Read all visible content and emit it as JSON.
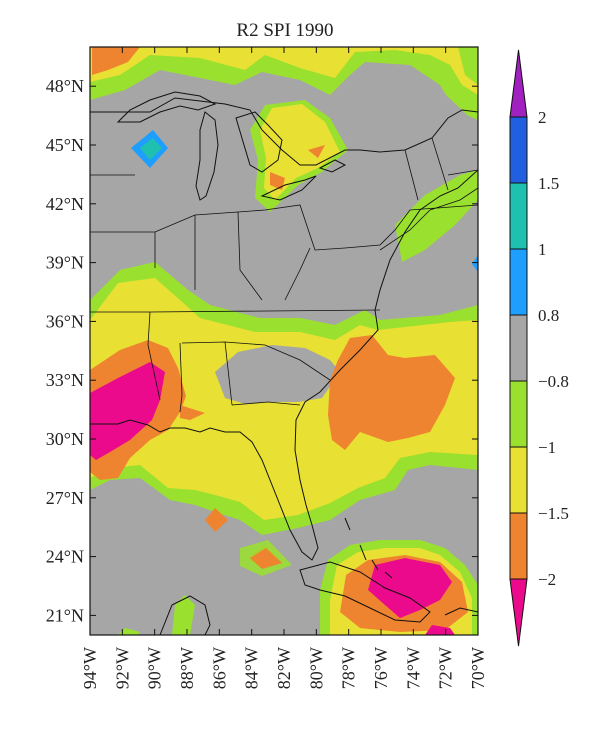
{
  "title": "R2 SPI 1990",
  "map": {
    "lon_range": [
      -94,
      -70
    ],
    "lat_range": [
      20,
      50
    ],
    "lat_ticks": [
      {
        "value": 48,
        "label": "48°N"
      },
      {
        "value": 45,
        "label": "45°N"
      },
      {
        "value": 42,
        "label": "42°N"
      },
      {
        "value": 39,
        "label": "39°N"
      },
      {
        "value": 36,
        "label": "36°N"
      },
      {
        "value": 33,
        "label": "33°N"
      },
      {
        "value": 30,
        "label": "30°N"
      },
      {
        "value": 27,
        "label": "27°N"
      },
      {
        "value": 24,
        "label": "24°N"
      },
      {
        "value": 21,
        "label": "21°N"
      }
    ],
    "lon_ticks": [
      {
        "value": -94,
        "label": "94°W"
      },
      {
        "value": -92,
        "label": "92°W"
      },
      {
        "value": -90,
        "label": "90°W"
      },
      {
        "value": -88,
        "label": "88°W"
      },
      {
        "value": -86,
        "label": "86°W"
      },
      {
        "value": -84,
        "label": "84°W"
      },
      {
        "value": -82,
        "label": "82°W"
      },
      {
        "value": -80,
        "label": "80°W"
      },
      {
        "value": -78,
        "label": "78°W"
      },
      {
        "value": -76,
        "label": "76°W"
      },
      {
        "value": -74,
        "label": "74°W"
      },
      {
        "value": -72,
        "label": "72°W"
      },
      {
        "value": -70,
        "label": "70°W"
      }
    ]
  },
  "colorbar": {
    "labels": [
      "2",
      "1.5",
      "1",
      "0.8",
      "−0.8",
      "−1",
      "−1.5",
      "−2"
    ],
    "bins": [
      {
        "range": "> 2",
        "color": "#a020c0"
      },
      {
        "range": "1.5 to 2",
        "color": "#1f5fe0"
      },
      {
        "range": "1 to 1.5",
        "color": "#1fc0b0"
      },
      {
        "range": "0.8 to 1",
        "color": "#1e9fff"
      },
      {
        "range": "-0.8 to 0.8",
        "color": "#a6a6a6"
      },
      {
        "range": "-1 to -0.8",
        "color": "#9ae02e"
      },
      {
        "range": "-1.5 to -1",
        "color": "#e8e033"
      },
      {
        "range": "-2 to -1.5",
        "color": "#ee8430"
      },
      {
        "range": "< -2",
        "color": "#ec0a8c"
      }
    ]
  },
  "colors": {
    "gray": "#a6a6a6",
    "green": "#9ae02e",
    "yellow": "#e8e033",
    "orange": "#ee8430",
    "magenta": "#ec0a8c",
    "cyan": "#1fc0b0",
    "lightblue": "#1e9fff"
  }
}
